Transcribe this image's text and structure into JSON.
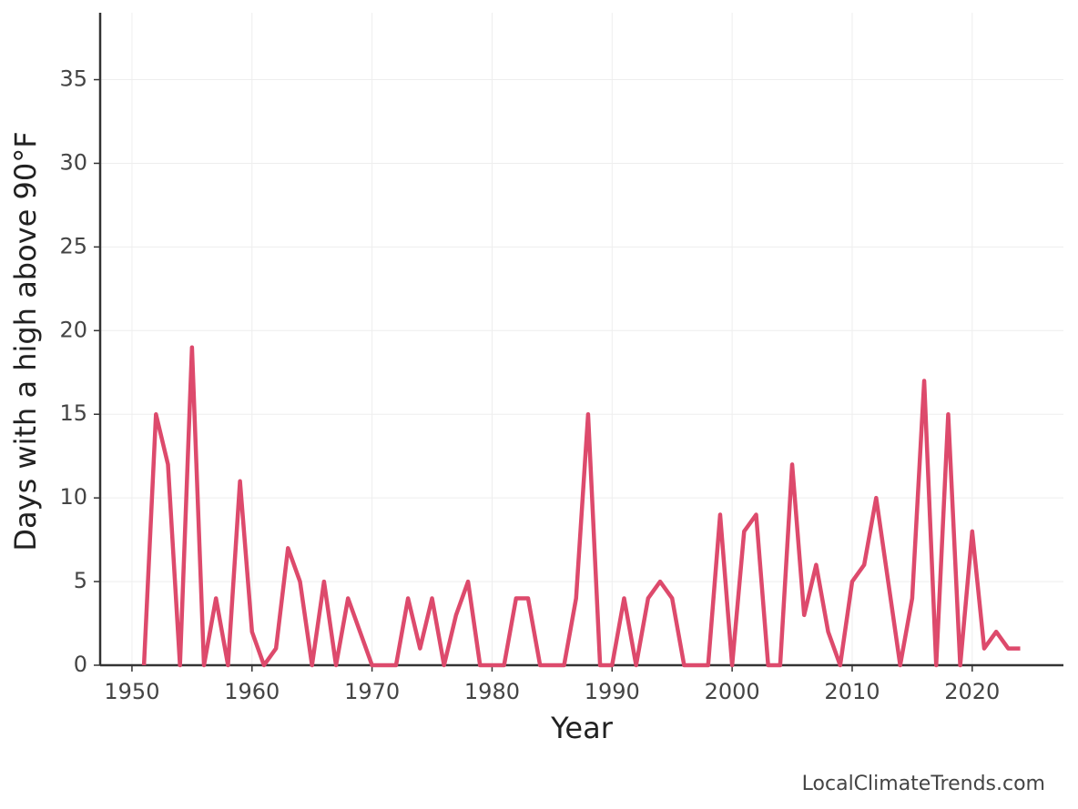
{
  "chart_data": {
    "type": "line",
    "xlabel": "Year",
    "ylabel": "Days with a high above 90°F",
    "source": "LocalClimateTrends.com",
    "x": [
      1951,
      1952,
      1953,
      1954,
      1955,
      1956,
      1957,
      1958,
      1959,
      1960,
      1961,
      1962,
      1963,
      1964,
      1965,
      1966,
      1967,
      1968,
      1969,
      1970,
      1971,
      1972,
      1973,
      1974,
      1975,
      1976,
      1977,
      1978,
      1979,
      1980,
      1981,
      1982,
      1983,
      1984,
      1985,
      1986,
      1987,
      1988,
      1989,
      1990,
      1991,
      1992,
      1993,
      1994,
      1995,
      1996,
      1997,
      1998,
      1999,
      2000,
      2001,
      2002,
      2003,
      2004,
      2005,
      2006,
      2007,
      2008,
      2009,
      2010,
      2011,
      2012,
      2013,
      2014,
      2015,
      2016,
      2017,
      2018,
      2019,
      2020,
      2021,
      2022,
      2023,
      2024
    ],
    "values": [
      0,
      15,
      12,
      0,
      19,
      0,
      4,
      0,
      11,
      2,
      0,
      1,
      7,
      5,
      0,
      5,
      0,
      4,
      2,
      0,
      0,
      0,
      4,
      1,
      4,
      0,
      3,
      5,
      0,
      0,
      0,
      4,
      4,
      0,
      0,
      0,
      4,
      15,
      0,
      0,
      4,
      0,
      4,
      5,
      4,
      0,
      0,
      0,
      9,
      0,
      8,
      9,
      0,
      0,
      12,
      3,
      6,
      2,
      0,
      5,
      6,
      10,
      5,
      0,
      4,
      17,
      0,
      15,
      0,
      8,
      1,
      2,
      1,
      1
    ],
    "color": "#dd4a6c",
    "xlim": [
      1947.35,
      2027.6
    ],
    "xticks": [
      1950,
      1960,
      1970,
      1980,
      1990,
      2000,
      2010,
      2020
    ],
    "ylim": [
      0,
      39
    ],
    "yticks": [
      0,
      5,
      10,
      15,
      20,
      25,
      30,
      35
    ],
    "grid": true
  }
}
